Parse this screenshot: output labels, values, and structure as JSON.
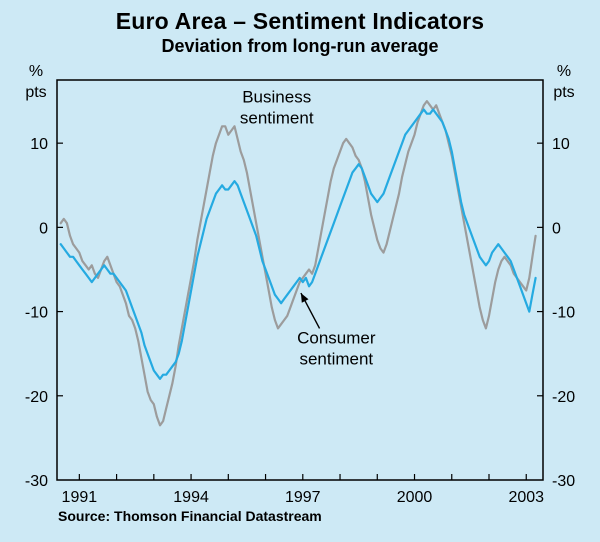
{
  "page": {
    "background": "#cde9f5"
  },
  "chart_data": {
    "type": "line",
    "title": "Euro Area – Sentiment Indicators",
    "subtitle": "Deviation from long-run average",
    "source": "Source: Thomson Financial Datastream",
    "y_unit": [
      "%",
      "pts"
    ],
    "ylim": [
      -30,
      17.5
    ],
    "xlim": [
      1990.4,
      2003.45
    ],
    "y_ticks": [
      10,
      0,
      -10,
      -20,
      -30
    ],
    "x_ticks": [
      1991,
      1994,
      1997,
      2000,
      2003
    ],
    "x_minor_ticks": [
      1991,
      1992,
      1993,
      1994,
      1995,
      1996,
      1997,
      1998,
      1999,
      2000,
      2001,
      2002,
      2003
    ],
    "grid": false,
    "series": [
      {
        "id": "business-sentiment",
        "name": "Business sentiment",
        "color": "#9c9c9c",
        "frequency": "monthly",
        "x_start": 1990.5,
        "values": [
          0.5,
          1,
          0.5,
          -1,
          -2,
          -2.5,
          -3,
          -4,
          -4.5,
          -5,
          -4.5,
          -5.5,
          -6,
          -5,
          -4,
          -3.5,
          -4.5,
          -5.5,
          -6.5,
          -7,
          -8,
          -9,
          -10.5,
          -11,
          -12,
          -13.5,
          -15.5,
          -17.5,
          -19.5,
          -20.5,
          -21,
          -22.5,
          -23.5,
          -23,
          -21.5,
          -20,
          -18.5,
          -16.5,
          -14,
          -12,
          -10,
          -8,
          -6,
          -4,
          -1.5,
          0.5,
          2.5,
          4.5,
          6.5,
          8.5,
          10,
          11,
          12,
          12,
          11,
          11.5,
          12,
          10.5,
          9,
          8,
          6.5,
          4.5,
          2.5,
          0.5,
          -1.5,
          -3.5,
          -5.5,
          -7.5,
          -9.5,
          -11,
          -12,
          -11.5,
          -11,
          -10.5,
          -9.5,
          -8.5,
          -7.5,
          -6.5,
          -6,
          -5.5,
          -5,
          -5.5,
          -4.5,
          -2.5,
          -0.5,
          1.5,
          3.5,
          5.5,
          7,
          8,
          9,
          10,
          10.5,
          10,
          9.5,
          8.5,
          8,
          7,
          5.5,
          3.5,
          1.5,
          0,
          -1.5,
          -2.5,
          -3,
          -2,
          -0.5,
          1,
          2.5,
          4,
          6,
          7.5,
          9,
          10,
          11,
          12.5,
          13.5,
          14.5,
          15,
          14.5,
          14,
          14.5,
          13.5,
          12.5,
          11.5,
          10,
          8.5,
          6.5,
          4.5,
          2.5,
          0.5,
          -1.5,
          -3.5,
          -5.5,
          -7.5,
          -9.5,
          -11,
          -12,
          -10.5,
          -8.5,
          -6.5,
          -5,
          -4,
          -3.5,
          -4,
          -4.5,
          -5.5,
          -6,
          -6.5,
          -7,
          -7.5,
          -6,
          -3.5,
          -1
        ]
      },
      {
        "id": "consumer-sentiment",
        "name": "Consumer sentiment",
        "color": "#25aae1",
        "frequency": "monthly",
        "x_start": 1990.5,
        "values": [
          -2,
          -2.5,
          -3,
          -3.5,
          -3.5,
          -4,
          -4.5,
          -5,
          -5.5,
          -6,
          -6.5,
          -6,
          -5.5,
          -5,
          -4.5,
          -5,
          -5.5,
          -5.5,
          -6,
          -6.5,
          -7,
          -7.5,
          -8.5,
          -9.5,
          -10.5,
          -11.5,
          -12.5,
          -14,
          -15,
          -16,
          -17,
          -17.5,
          -18,
          -17.5,
          -17.5,
          -17,
          -16.5,
          -16,
          -15,
          -13.5,
          -11.5,
          -9.5,
          -7.5,
          -5.5,
          -3.5,
          -2,
          -0.5,
          1,
          2,
          3,
          4,
          4.5,
          5,
          4.5,
          4.5,
          5,
          5.5,
          5,
          4,
          3,
          2,
          1,
          0,
          -1,
          -2.5,
          -4,
          -5,
          -6,
          -7,
          -8,
          -8.5,
          -9,
          -8.5,
          -8,
          -7.5,
          -7,
          -6.5,
          -6,
          -6.5,
          -6,
          -7,
          -6.5,
          -5.5,
          -4.5,
          -3.5,
          -2.5,
          -1.5,
          -0.5,
          0.5,
          1.5,
          2.5,
          3.5,
          4.5,
          5.5,
          6.5,
          7,
          7.5,
          7,
          6,
          5,
          4,
          3.5,
          3,
          3.5,
          4,
          5,
          6,
          7,
          8,
          9,
          10,
          11,
          11.5,
          12,
          12.5,
          13,
          13.5,
          14,
          13.5,
          13.5,
          14,
          13.5,
          13,
          12.5,
          11.5,
          10.5,
          9,
          7,
          5,
          3,
          1.5,
          0.5,
          -0.5,
          -1.5,
          -2.5,
          -3.5,
          -4,
          -4.5,
          -4,
          -3,
          -2.5,
          -2,
          -2.5,
          -3,
          -3.5,
          -4,
          -5,
          -6,
          -7,
          -8,
          -9,
          -10,
          -8,
          -6
        ]
      }
    ],
    "annotations": [
      {
        "id": "business-sentiment-label",
        "lines": [
          "Business",
          "sentiment"
        ],
        "x": 1996.3,
        "y": 14.8
      },
      {
        "id": "consumer-sentiment-label",
        "lines": [
          "Consumer",
          "sentiment"
        ],
        "x": 1997.9,
        "y": -13.8,
        "arrow": {
          "x1": 1997.45,
          "y1": -12.0,
          "x2": 1996.95,
          "y2": -7.8
        }
      }
    ]
  }
}
